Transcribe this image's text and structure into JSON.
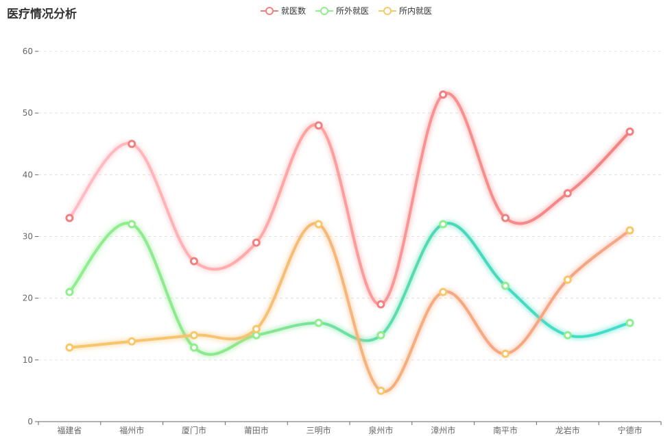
{
  "chart_data": {
    "type": "line",
    "title": "医疗情况分析",
    "categories": [
      "福建省",
      "福州市",
      "厦门市",
      "莆田市",
      "三明市",
      "泉州市",
      "漳州市",
      "南平市",
      "龙岩市",
      "宁德市"
    ],
    "ylim": [
      0,
      60
    ],
    "yticks": [
      0,
      10,
      20,
      30,
      40,
      50,
      60
    ],
    "grid": true,
    "legend_position": "top-center",
    "series": [
      {
        "name": "就医数",
        "values": [
          33,
          45,
          26,
          29,
          48,
          19,
          53,
          33,
          37,
          47
        ],
        "marker_color": "#f08080",
        "gradient": [
          "#ffc0cb",
          "#ffaaaa",
          "#f88f8f",
          "#f08080"
        ]
      },
      {
        "name": "所外就医",
        "values": [
          21,
          32,
          12,
          14,
          16,
          14,
          32,
          22,
          14,
          16
        ],
        "marker_color": "#90ee90",
        "gradient": [
          "#90ee90",
          "#8ee88e",
          "#48d8b8",
          "#40e0d0"
        ]
      },
      {
        "name": "所内就医",
        "values": [
          12,
          13,
          14,
          15,
          32,
          5,
          21,
          11,
          23,
          31
        ],
        "marker_color": "#f6c86a",
        "gradient": [
          "#f6c86a",
          "#f6c274",
          "#f5a880",
          "#f4a587"
        ]
      }
    ]
  }
}
